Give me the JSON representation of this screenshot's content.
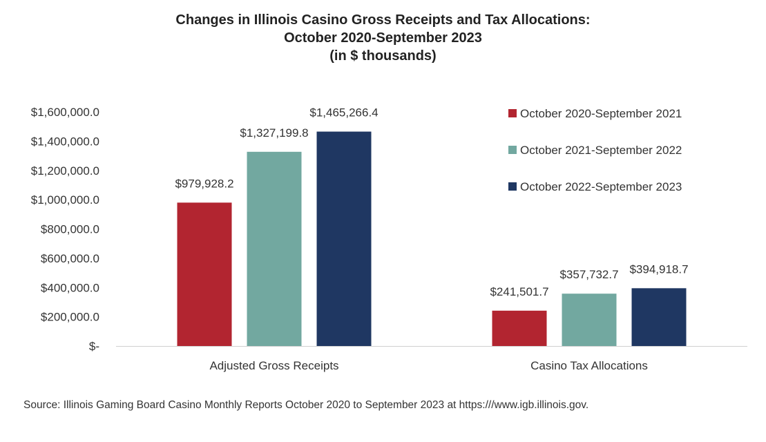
{
  "chart_data": {
    "type": "bar",
    "title": "Changes in Illinois Casino Gross Receipts and Tax Allocations:",
    "subtitle": "October 2020-September  2023",
    "subtitle2": "(in $ thousands)",
    "categories": [
      "Adjusted Gross Receipts",
      "Casino Tax Allocations"
    ],
    "series": [
      {
        "name": "October 2020-September 2021",
        "color": "#b22530",
        "values": [
          979928.2,
          241501.7
        ],
        "labels": [
          "$979,928.2",
          "$241,501.7"
        ]
      },
      {
        "name": "October 2021-September 2022",
        "color": "#72a8a0",
        "values": [
          1327199.8,
          357732.7
        ],
        "labels": [
          "$1,327,199.8",
          "$357,732.7"
        ]
      },
      {
        "name": "October 2022-September 2023",
        "color": "#1f3762",
        "values": [
          1465266.4,
          394918.7
        ],
        "labels": [
          "$1,465,266.4",
          "$394,918.7"
        ]
      }
    ],
    "ylim": [
      0,
      1600000
    ],
    "yticks": [
      {
        "value": 0,
        "label": "$-"
      },
      {
        "value": 200000,
        "label": "$200,000.0"
      },
      {
        "value": 400000,
        "label": "$400,000.0"
      },
      {
        "value": 600000,
        "label": "$600,000.0"
      },
      {
        "value": 800000,
        "label": "$800,000.0"
      },
      {
        "value": 1000000,
        "label": "$1,000,000.0"
      },
      {
        "value": 1200000,
        "label": "$1,200,000.0"
      },
      {
        "value": 1400000,
        "label": "$1,400,000.0"
      },
      {
        "value": 1600000,
        "label": "$1,600,000.0"
      }
    ],
    "grid": false,
    "legend_position": "top-right"
  },
  "source_note": "Source: Illinois Gaming Board Casino Monthly Reports October 2020 to September 2023 at https:///www.igb.illinois.gov."
}
